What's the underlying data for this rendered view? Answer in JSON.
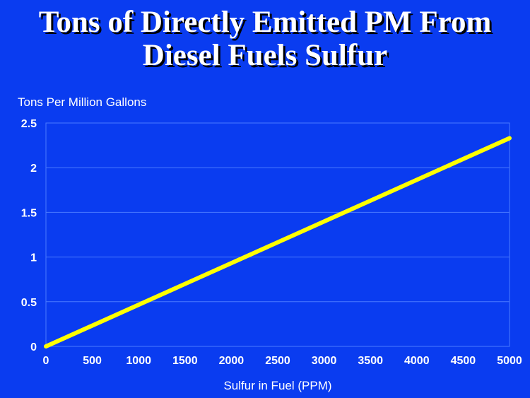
{
  "title_lines": [
    "Tons of Directly Emitted PM From",
    "Diesel Fuels Sulfur"
  ],
  "colors": {
    "background": "#0a3cf0",
    "plot_border": "#4a7aff",
    "gridline": "#4a7aff",
    "line": "#ffff00",
    "text": "#ffffff"
  },
  "chart_data": {
    "type": "line",
    "title": "Tons of Directly Emitted PM From Diesel Fuels Sulfur",
    "xlabel": "Sulfur in Fuel (PPM)",
    "ylabel": "Tons Per Million Gallons",
    "xlim": [
      0,
      5000
    ],
    "ylim": [
      0,
      2.5
    ],
    "xticks": [
      "0",
      "500",
      "1000",
      "1500",
      "2000",
      "2500",
      "3000",
      "3500",
      "4000",
      "4500",
      "5000"
    ],
    "yticks": [
      "0",
      "0.5",
      "1",
      "1.5",
      "2",
      "2.5"
    ],
    "grid": "horizontal",
    "series": [
      {
        "x": [
          0,
          5000
        ],
        "y": [
          0,
          2.33
        ]
      }
    ]
  }
}
